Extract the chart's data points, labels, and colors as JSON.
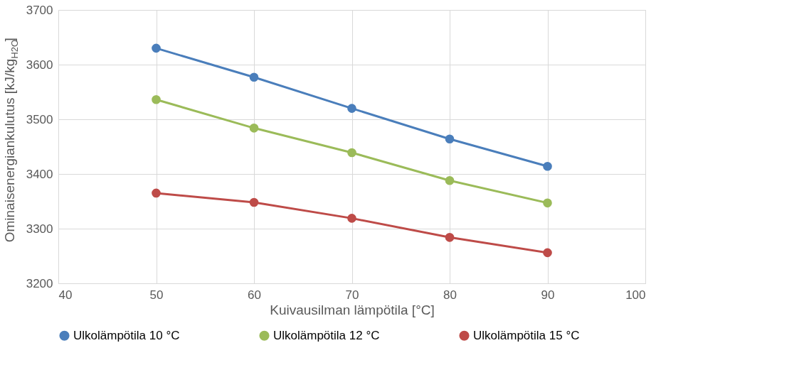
{
  "chart_data": {
    "type": "line",
    "xlabel": "Kuivausilman lämpötila [°C]",
    "ylabel": "Ominaisenergiankulutus [kJ/kg$_{H2O}$]",
    "x": [
      50,
      60,
      70,
      80,
      90
    ],
    "series": [
      {
        "name": "Ulkolämpötila 10 °C",
        "color": "#4a7ebb",
        "values": [
          3630,
          3577,
          3520,
          3464,
          3414
        ]
      },
      {
        "name": "Ulkolämpötila 12 °C",
        "color": "#9bbb59",
        "values": [
          3536,
          3484,
          3439,
          3388,
          3347
        ]
      },
      {
        "name": "Ulkolämpötila 15 °C",
        "color": "#be4b48",
        "values": [
          3365,
          3348,
          3319,
          3284,
          3256
        ]
      }
    ],
    "xlim": [
      40,
      100
    ],
    "xticks": [
      40,
      50,
      60,
      70,
      80,
      90,
      100
    ],
    "ylim": [
      3200,
      3700
    ],
    "yticks": [
      3200,
      3300,
      3400,
      3500,
      3600,
      3700
    ],
    "grid": true,
    "legend": "bottom",
    "marker": "circle",
    "line_style": "solid"
  }
}
